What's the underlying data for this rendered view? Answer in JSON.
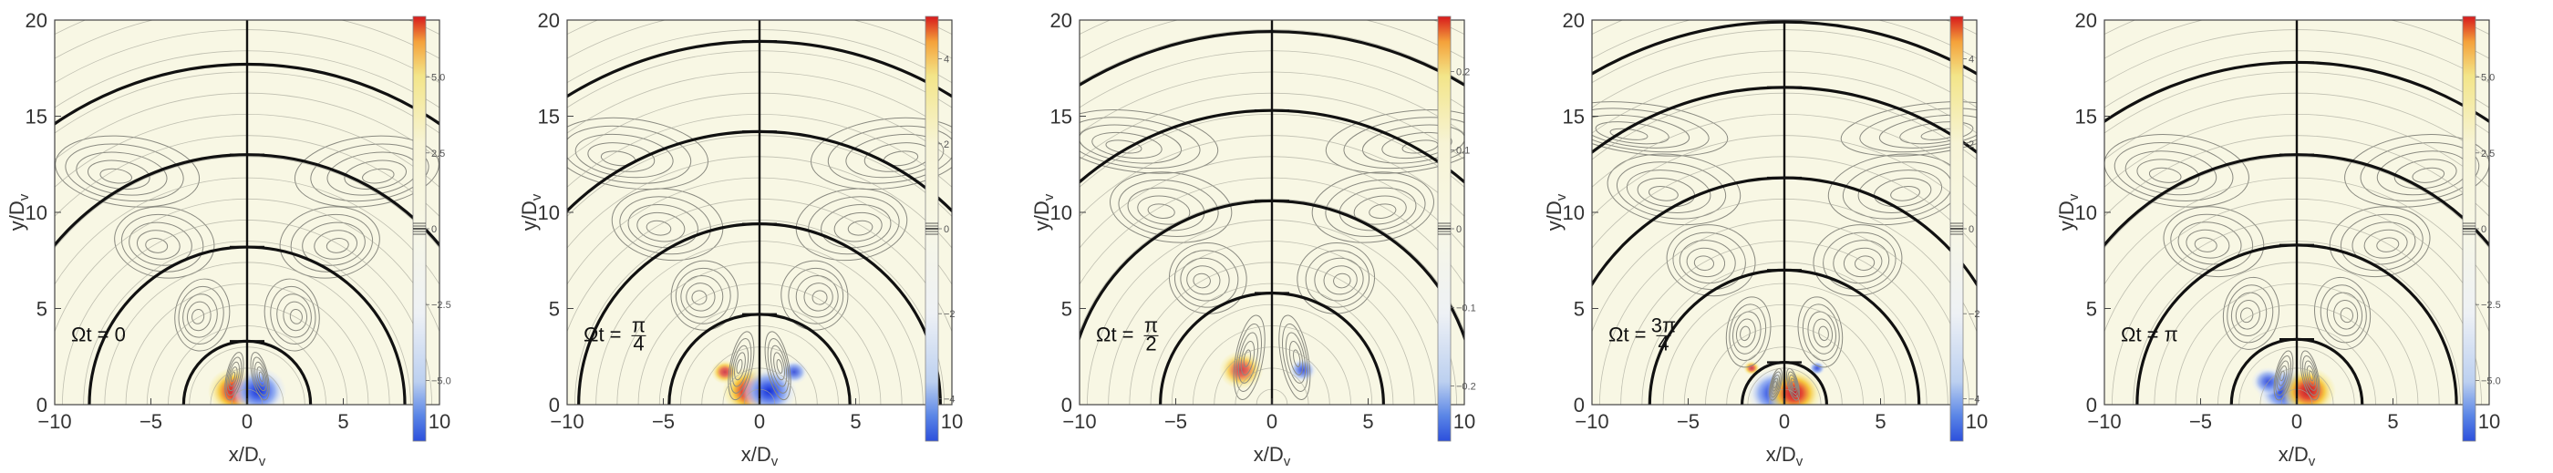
{
  "chart_data": [
    {
      "type": "heatmap",
      "xlabel": "x/D_v",
      "ylabel": "y/D_v",
      "xlim": [
        -10,
        10
      ],
      "ylim": [
        0,
        20
      ],
      "x_ticks": [
        "−10",
        "−5",
        "0",
        "5",
        "10"
      ],
      "y_ticks": [
        "0",
        "5",
        "10",
        "15",
        "20"
      ],
      "time_label": "Ωt = 0",
      "colorbar": {
        "range": [
          -7,
          7
        ],
        "ticks": [
          "5.0",
          "2.5",
          "0",
          "−2.5",
          "−5.0"
        ]
      },
      "wave_radii": [
        3.3,
        8.2,
        13.0,
        17.7
      ],
      "blobs": [
        {
          "x": -0.6,
          "y": 0.7,
          "sign": 1,
          "strength": 1.0
        },
        {
          "x": 0.6,
          "y": 0.7,
          "sign": -1,
          "strength": 1.0
        }
      ]
    },
    {
      "type": "heatmap",
      "xlabel": "x/D_v",
      "ylabel": "y/D_v",
      "xlim": [
        -10,
        10
      ],
      "ylim": [
        0,
        20
      ],
      "x_ticks": [
        "−10",
        "−5",
        "0",
        "5",
        "10"
      ],
      "y_ticks": [
        "0",
        "5",
        "10",
        "15",
        "20"
      ],
      "time_label": "Ωt = π/4",
      "colorbar": {
        "range": [
          -5,
          5
        ],
        "ticks": [
          "4",
          "2",
          "0",
          "−2",
          "−4"
        ]
      },
      "wave_radii": [
        4.7,
        9.4,
        14.2,
        18.9
      ],
      "blobs": [
        {
          "x": -0.5,
          "y": 0.7,
          "sign": 1,
          "strength": 1.0
        },
        {
          "x": 0.5,
          "y": 0.7,
          "sign": -1,
          "strength": 1.0
        },
        {
          "x": -1.8,
          "y": 1.7,
          "sign": 1,
          "strength": 0.5
        },
        {
          "x": 1.8,
          "y": 1.7,
          "sign": -1,
          "strength": 0.5
        }
      ]
    },
    {
      "type": "heatmap",
      "xlabel": "x/D_v",
      "ylabel": "y/D_v",
      "xlim": [
        -10,
        10
      ],
      "ylim": [
        0,
        20
      ],
      "x_ticks": [
        "−10",
        "−5",
        "0",
        "5",
        "10"
      ],
      "y_ticks": [
        "0",
        "5",
        "10",
        "15",
        "20"
      ],
      "time_label": "Ωt = π/2",
      "colorbar": {
        "range": [
          -0.27,
          0.27
        ],
        "ticks": [
          "0.2",
          "0.1",
          "0",
          "−0.1",
          "−0.2"
        ]
      },
      "wave_radii": [
        5.8,
        10.6,
        15.3,
        19.4
      ],
      "blobs": [
        {
          "x": -1.6,
          "y": 1.8,
          "sign": 1,
          "strength": 0.8
        },
        {
          "x": 1.6,
          "y": 1.8,
          "sign": -1,
          "strength": 0.5
        }
      ]
    },
    {
      "type": "heatmap",
      "xlabel": "x/D_v",
      "ylabel": "y/D_v",
      "xlim": [
        -10,
        10
      ],
      "ylim": [
        0,
        20
      ],
      "x_ticks": [
        "−10",
        "−5",
        "0",
        "5",
        "10"
      ],
      "y_ticks": [
        "0",
        "5",
        "10",
        "15",
        "20"
      ],
      "time_label": "Ωt = 3π/4",
      "colorbar": {
        "range": [
          -5,
          5
        ],
        "ticks": [
          "4",
          "2",
          "0",
          "−2",
          "−4"
        ]
      },
      "wave_radii": [
        2.2,
        7.0,
        11.8,
        16.5,
        19.9
      ],
      "blobs": [
        {
          "x": -0.5,
          "y": 0.6,
          "sign": -1,
          "strength": 1.0
        },
        {
          "x": 0.5,
          "y": 0.6,
          "sign": 1,
          "strength": 1.0
        },
        {
          "x": -1.7,
          "y": 1.9,
          "sign": 1,
          "strength": 0.3
        },
        {
          "x": 1.7,
          "y": 1.9,
          "sign": -1,
          "strength": 0.3
        }
      ]
    },
    {
      "type": "heatmap",
      "xlabel": "x/D_v",
      "ylabel": "y/D_v",
      "xlim": [
        -10,
        10
      ],
      "ylim": [
        0,
        20
      ],
      "x_ticks": [
        "−10",
        "−5",
        "0",
        "5",
        "10"
      ],
      "y_ticks": [
        "0",
        "5",
        "10",
        "15",
        "20"
      ],
      "time_label": "Ωt = π",
      "colorbar": {
        "range": [
          -7,
          7
        ],
        "ticks": [
          "5.0",
          "2.5",
          "0",
          "−2.5",
          "−5.0"
        ]
      },
      "wave_radii": [
        3.4,
        8.3,
        13.0,
        17.8
      ],
      "blobs": [
        {
          "x": -0.6,
          "y": 0.7,
          "sign": -1,
          "strength": 1.0
        },
        {
          "x": 0.6,
          "y": 0.7,
          "sign": 1,
          "strength": 1.0
        },
        {
          "x": -1.5,
          "y": 1.2,
          "sign": -1,
          "strength": 0.6
        }
      ]
    }
  ]
}
